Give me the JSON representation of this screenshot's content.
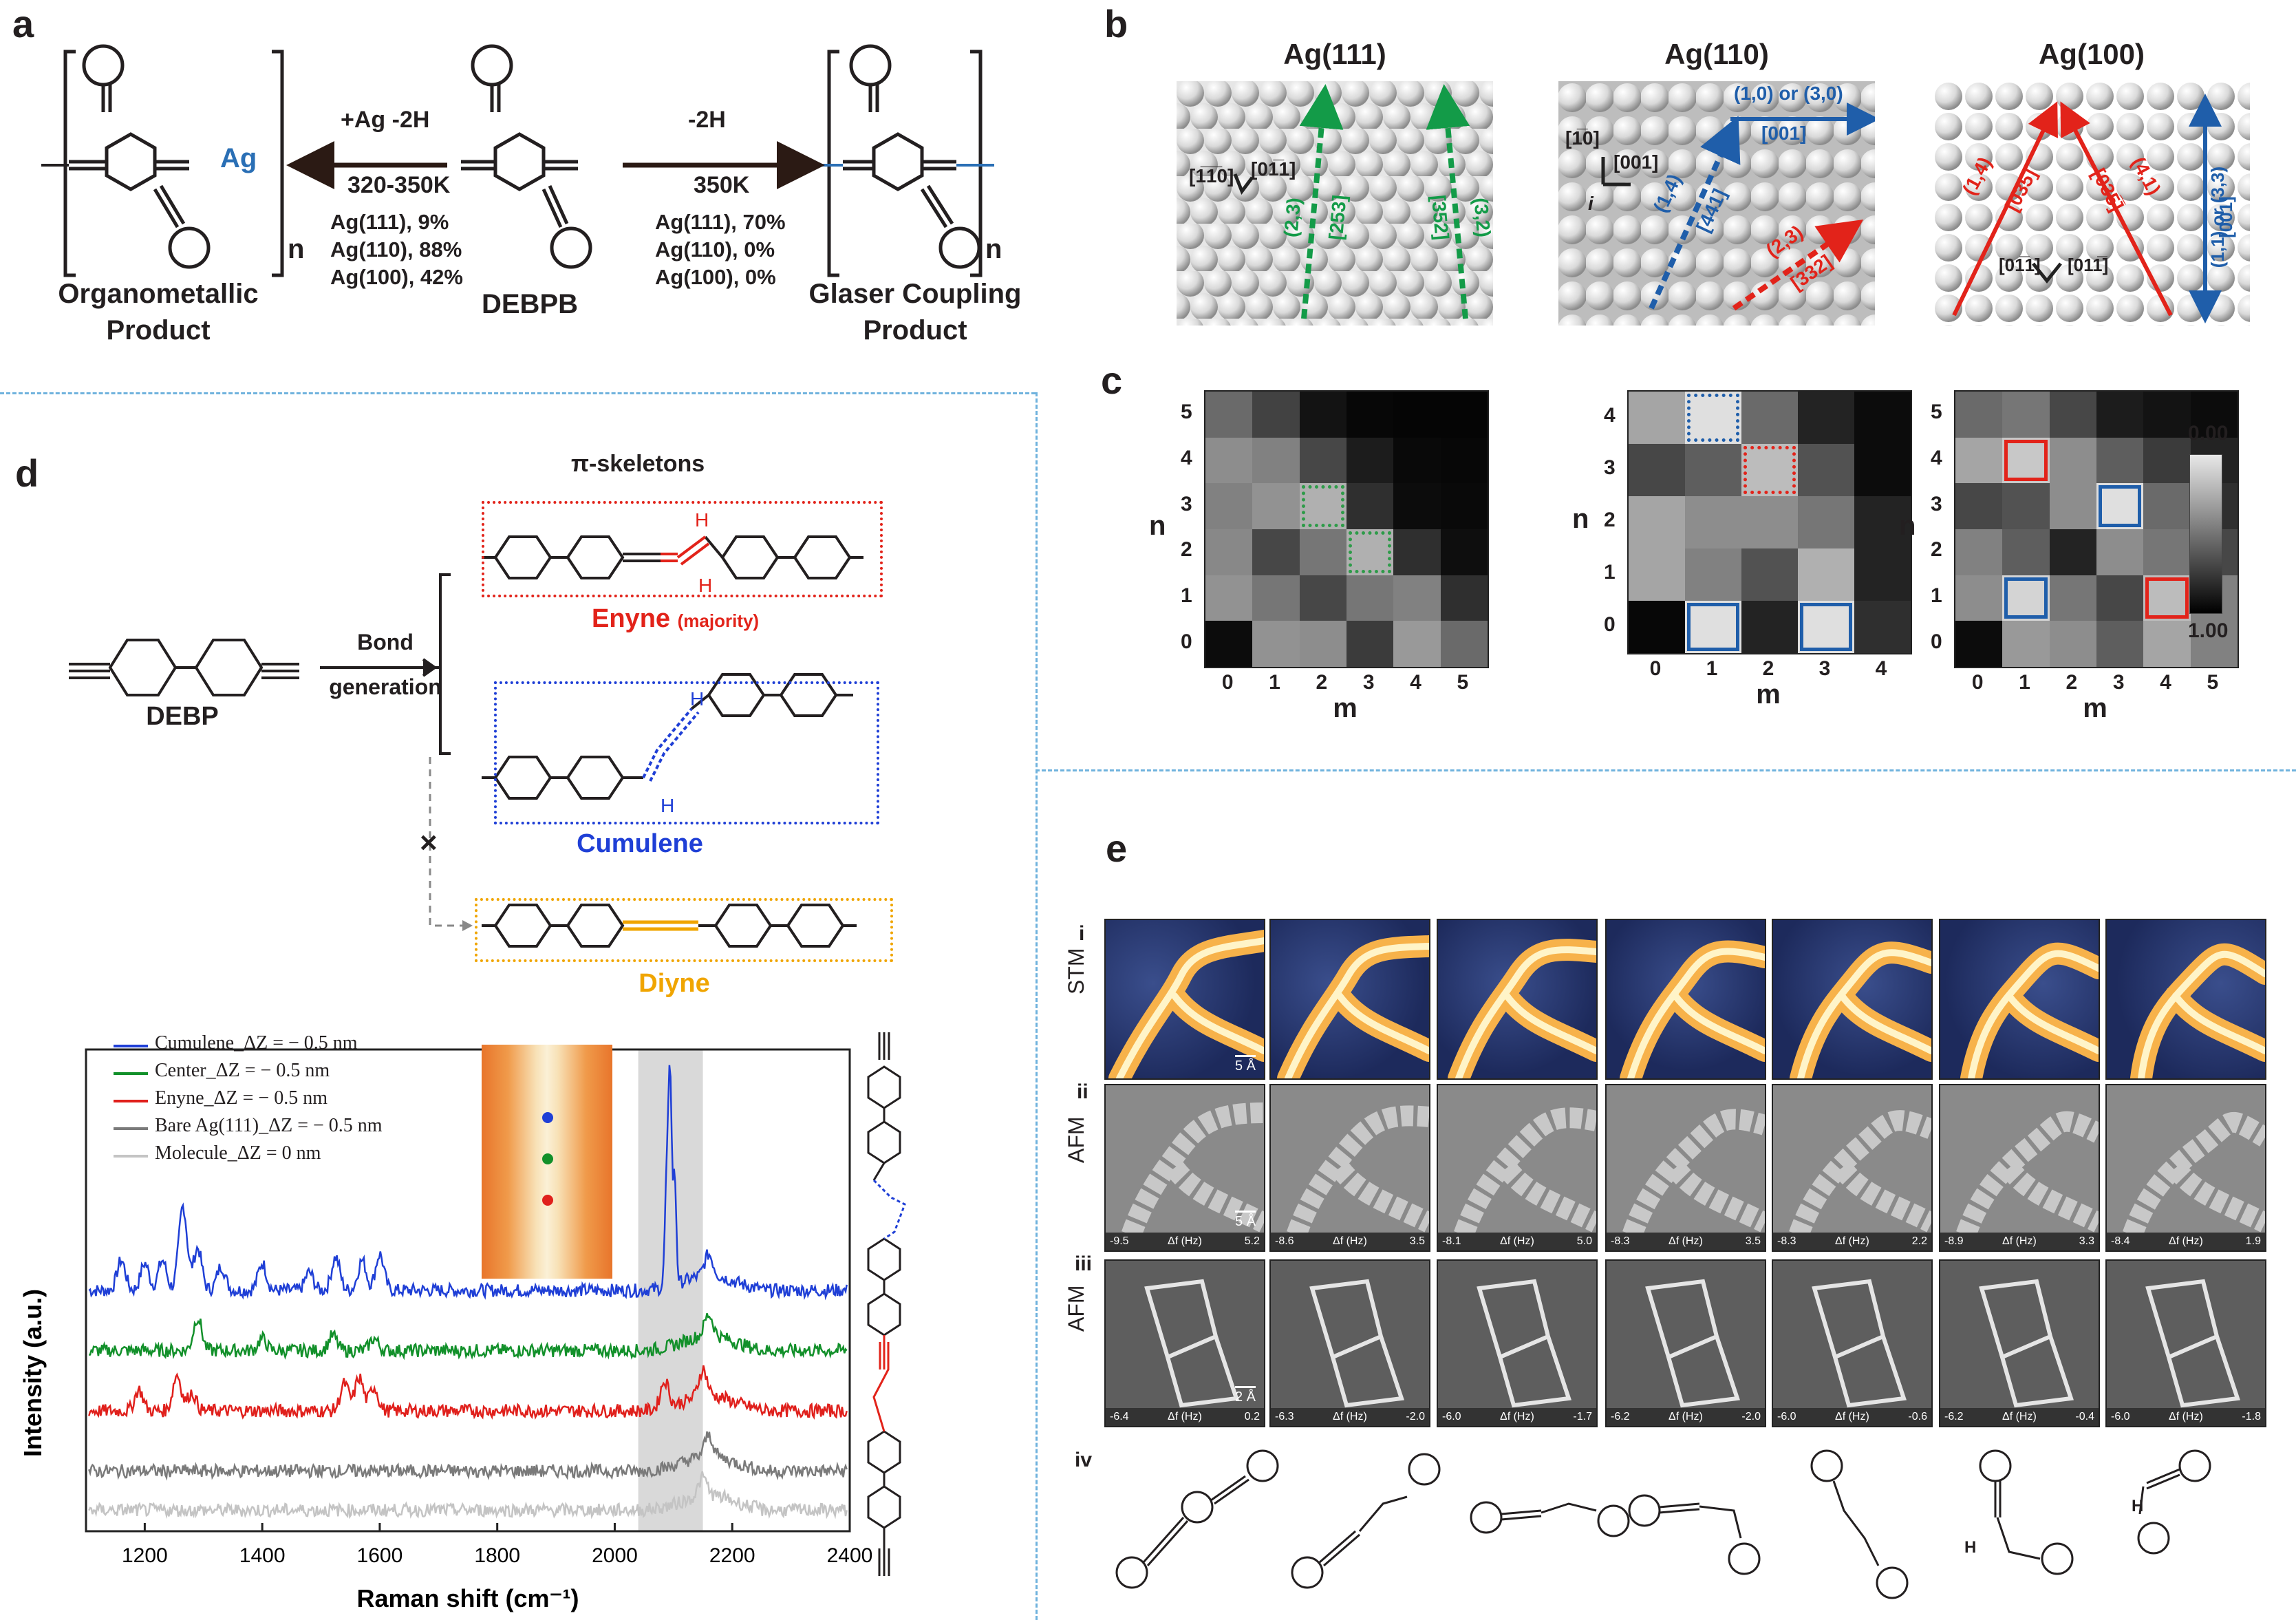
{
  "panels": {
    "a": "a",
    "b": "b",
    "c": "c",
    "d": "d",
    "e": "e"
  },
  "a": {
    "left_caption": [
      "Organometallic",
      "Product"
    ],
    "center_caption": "DEBPB",
    "right_caption": [
      "Glaser Coupling",
      "Product"
    ],
    "ag_label": "Ag",
    "left_arrow_top": "+Ag  -2H",
    "left_arrow_bottom": "320-350K",
    "left_yields": [
      "Ag(111), 9%",
      "Ag(110), 88%",
      "Ag(100), 42%"
    ],
    "right_arrow_top": "-2H",
    "right_arrow_bottom": "350K",
    "right_yields": [
      "Ag(111), 70%",
      "Ag(110), 0%",
      "Ag(100), 0%"
    ],
    "n": "n"
  },
  "b": {
    "surfaces": [
      {
        "title": "Ag(111)",
        "labels": [
          "[1̅1̅0]",
          "[01̅1]",
          "(2,3)",
          "[253]",
          "[352]",
          "(3,2)"
        ]
      },
      {
        "title": "Ag(110)",
        "labels": [
          "[1̅0]",
          "[001]",
          "i",
          "(1,0) or (3,0)",
          "[001]",
          "(1,4)",
          "[441]",
          "(2,3)",
          "[332]"
        ]
      },
      {
        "title": "Ag(100)",
        "labels": [
          "(1,4)",
          "[035]",
          "[035̅]",
          "(4,1)",
          "(1,1) or (3,3)",
          "[001]",
          "[01̅1]",
          "[011̅]"
        ]
      }
    ]
  },
  "c": {
    "axis_n": "n",
    "axis_m": "m",
    "colorbar": {
      "top": "0.00",
      "bottom": "1.00"
    },
    "grids": [
      {
        "cols": 6,
        "rows": 6,
        "xticks": [
          "0",
          "1",
          "2",
          "3",
          "4",
          "5"
        ],
        "yticks": [
          "0",
          "1",
          "2",
          "3",
          "4",
          "5"
        ],
        "values": [
          [
            0.55,
            0.72,
            0.92,
            0.97,
            0.98,
            0.98
          ],
          [
            0.4,
            0.45,
            0.7,
            0.88,
            0.96,
            0.97
          ],
          [
            0.45,
            0.38,
            0.25,
            0.8,
            0.95,
            0.96
          ],
          [
            0.42,
            0.7,
            0.5,
            0.25,
            0.8,
            0.94
          ],
          [
            0.38,
            0.5,
            0.7,
            0.5,
            0.45,
            0.8
          ],
          [
            0.95,
            0.38,
            0.4,
            0.75,
            0.35,
            0.55
          ]
        ],
        "highlights": [
          {
            "m": 2,
            "n": 3,
            "color": "#2e9b49",
            "style": "dotted"
          },
          {
            "m": 3,
            "n": 2,
            "color": "#2e9b49",
            "style": "dotted"
          }
        ]
      },
      {
        "cols": 5,
        "rows": 5,
        "xticks": [
          "0",
          "1",
          "2",
          "3",
          "4"
        ],
        "yticks": [
          "0",
          "1",
          "2",
          "3",
          "4"
        ],
        "values": [
          [
            0.3,
            0.05,
            0.55,
            0.85,
            0.95
          ],
          [
            0.7,
            0.6,
            0.2,
            0.65,
            0.95
          ],
          [
            0.3,
            0.4,
            0.4,
            0.5,
            0.85
          ],
          [
            0.3,
            0.45,
            0.65,
            0.25,
            0.85
          ],
          [
            0.97,
            0.05,
            0.85,
            0.05,
            0.8
          ]
        ],
        "highlights": [
          {
            "m": 1,
            "n": 4,
            "color": "#1f5eaa",
            "style": "dotted"
          },
          {
            "m": 2,
            "n": 3,
            "color": "#e2231a",
            "style": "dotted"
          },
          {
            "m": 1,
            "n": 0,
            "color": "#1f5eaa",
            "style": "solid"
          },
          {
            "m": 3,
            "n": 0,
            "color": "#1f5eaa",
            "style": "solid"
          }
        ]
      },
      {
        "cols": 6,
        "rows": 6,
        "xticks": [
          "0",
          "1",
          "2",
          "3",
          "4",
          "5"
        ],
        "yticks": [
          "0",
          "1",
          "2",
          "3",
          "4",
          "5"
        ],
        "values": [
          [
            0.55,
            0.5,
            0.7,
            0.88,
            0.92,
            0.95
          ],
          [
            0.3,
            0.15,
            0.4,
            0.6,
            0.75,
            0.85
          ],
          [
            0.7,
            0.65,
            0.4,
            0.05,
            0.55,
            0.8
          ],
          [
            0.45,
            0.6,
            0.85,
            0.4,
            0.5,
            0.7
          ],
          [
            0.4,
            0.1,
            0.5,
            0.7,
            0.2,
            0.45
          ],
          [
            0.95,
            0.35,
            0.4,
            0.6,
            0.3,
            0.45
          ]
        ],
        "highlights": [
          {
            "m": 1,
            "n": 4,
            "color": "#e2231a",
            "style": "solid"
          },
          {
            "m": 3,
            "n": 3,
            "color": "#1f5eaa",
            "style": "solid"
          },
          {
            "m": 1,
            "n": 1,
            "color": "#1f5eaa",
            "style": "solid"
          },
          {
            "m": 4,
            "n": 1,
            "color": "#e2231a",
            "style": "solid"
          }
        ]
      }
    ]
  },
  "d": {
    "pi_title": "π-skeletons",
    "debp": "DEBP",
    "bond": [
      "Bond",
      "generation"
    ],
    "enyne": "Enyne",
    "majority": "(majority)",
    "cumulene": "Cumulene",
    "diyne": "Diyne",
    "cross": "×",
    "h": "H",
    "legend": [
      "Cumulene_ΔZ = − 0.5 nm",
      "Center_ΔZ = − 0.5 nm",
      "Enyne_ΔZ = − 0.5 nm",
      "Bare Ag(111)_ΔZ = − 0.5 nm",
      "Molecule_ΔZ = 0 nm"
    ],
    "legend_colors": [
      "#1f3fd6",
      "#12902a",
      "#e0201c",
      "#7a7a7a",
      "#c4c4c4"
    ]
  },
  "chart_data": {
    "type": "line",
    "xlabel": "Raman shift (cm⁻¹)",
    "ylabel": "Intensity (a.u.)",
    "xlim": [
      1100,
      2400
    ],
    "xticks": [
      1200,
      1400,
      1600,
      1800,
      2000,
      2200,
      2400
    ],
    "highlight_band": [
      2040,
      2150
    ],
    "series": [
      {
        "name": "Cumulene_ΔZ = − 0.5 nm",
        "color": "#1f3fd6",
        "offset": 4.0,
        "peaks": [
          [
            1160,
            0.5
          ],
          [
            1200,
            0.45
          ],
          [
            1230,
            0.5
          ],
          [
            1265,
            1.4
          ],
          [
            1290,
            0.7
          ],
          [
            1330,
            0.4
          ],
          [
            1400,
            0.45
          ],
          [
            1480,
            0.3
          ],
          [
            1525,
            0.55
          ],
          [
            1570,
            0.5
          ],
          [
            1600,
            0.6
          ],
          [
            2088,
            1.6
          ],
          [
            2094,
            3.6
          ],
          [
            2102,
            1.8
          ],
          [
            2160,
            0.35
          ]
        ]
      },
      {
        "name": "Center_ΔZ = − 0.5 nm",
        "color": "#12902a",
        "offset": 3.0,
        "peaks": [
          [
            1290,
            0.55
          ],
          [
            1400,
            0.2
          ],
          [
            1520,
            0.25
          ],
          [
            1590,
            0.2
          ],
          [
            2160,
            0.35
          ]
        ]
      },
      {
        "name": "Enyne_ΔZ = − 0.5 nm",
        "color": "#e0201c",
        "offset": 2.0,
        "peaks": [
          [
            1190,
            0.35
          ],
          [
            1255,
            0.6
          ],
          [
            1280,
            0.3
          ],
          [
            1540,
            0.45
          ],
          [
            1565,
            0.55
          ],
          [
            1590,
            0.4
          ],
          [
            2085,
            0.45
          ],
          [
            2150,
            0.45
          ]
        ]
      },
      {
        "name": "Bare Ag(111)_ΔZ = − 0.5 nm",
        "color": "#7a7a7a",
        "offset": 1.0,
        "peaks": [
          [
            2160,
            0.35
          ]
        ]
      },
      {
        "name": "Molecule_ΔZ = 0 nm",
        "color": "#c4c4c4",
        "offset": 0.35,
        "peaks": [
          [
            2150,
            0.3
          ]
        ]
      }
    ]
  },
  "e": {
    "rows": [
      "i",
      "ii",
      "iii",
      "iv"
    ],
    "row_titles": [
      "STM",
      "AFM",
      "AFM"
    ],
    "scales": [
      "5 Å",
      "5 Å",
      "2 Å"
    ],
    "df": "Δf (Hz)",
    "afm_ii_ranges": [
      [
        "-9.5",
        "5.2"
      ],
      [
        "-8.6",
        "3.5"
      ],
      [
        "-8.1",
        "5.0"
      ],
      [
        "-8.3",
        "3.5"
      ],
      [
        "-8.3",
        "2.2"
      ],
      [
        "-8.9",
        "3.3"
      ],
      [
        "-8.4",
        "1.9"
      ]
    ],
    "afm_iii_ranges": [
      [
        "-6.4",
        "0.2"
      ],
      [
        "-6.3",
        "-2.0"
      ],
      [
        "-6.0",
        "-1.7"
      ],
      [
        "-6.2",
        "-2.0"
      ],
      [
        "-6.0",
        "-0.6"
      ],
      [
        "-6.2",
        "-0.4"
      ],
      [
        "-6.0",
        "-1.8"
      ]
    ],
    "h": "H"
  }
}
